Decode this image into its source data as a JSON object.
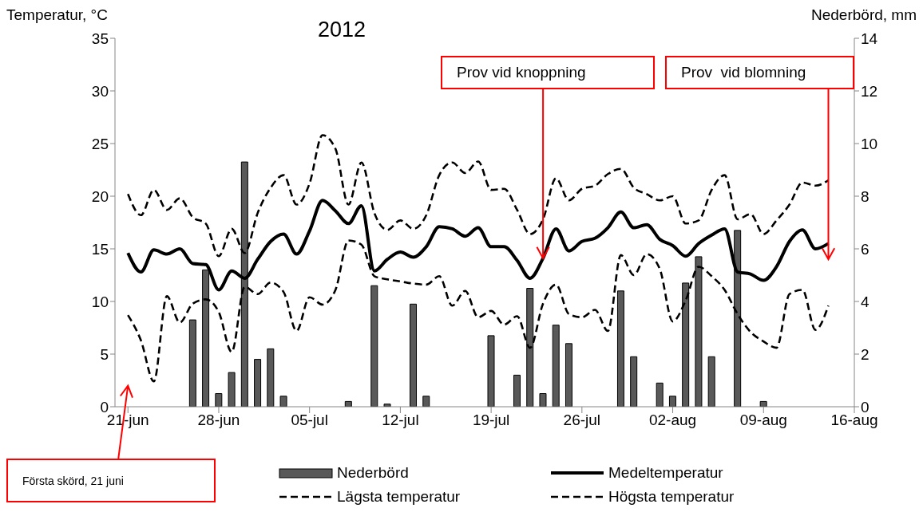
{
  "chart_data": {
    "type": "line",
    "title": "2012",
    "ylabel": "Temperatur, °C",
    "y2label": "Nederbörd, mm",
    "x": [
      "--06-21",
      "--06-22",
      "--06-23",
      "--06-24",
      "--06-25",
      "--06-26",
      "--06-27",
      "--06-28",
      "--06-29",
      "--06-30",
      "--07-01",
      "--07-02",
      "--07-03",
      "--07-04",
      "--07-05",
      "--07-06",
      "--07-07",
      "--07-08",
      "--07-09",
      "--07-10",
      "--07-11",
      "--07-12",
      "--07-13",
      "--07-14",
      "--07-15",
      "--07-16",
      "--07-17",
      "--07-18",
      "--07-19",
      "--07-20",
      "--07-21",
      "--07-22",
      "--07-23",
      "--07-24",
      "--07-25",
      "--07-26",
      "--07-27",
      "--07-28",
      "--07-29",
      "--07-30",
      "--07-31",
      "--08-01",
      "--08-02",
      "--08-03",
      "--08-04",
      "--08-05",
      "--08-06",
      "--08-07",
      "--08-08",
      "--08-09",
      "--08-10",
      "--08-11",
      "--08-12",
      "--08-13",
      "--08-14"
    ],
    "series": [
      {
        "name": "Nederbörd",
        "type": "bar",
        "axis": "y2",
        "color": "#595959",
        "values": [
          0,
          0,
          0,
          0,
          0,
          3.3,
          5.2,
          0.5,
          1.3,
          9.3,
          1.8,
          2.2,
          0.4,
          0,
          0,
          0,
          0,
          0.2,
          0,
          4.6,
          0.1,
          0,
          3.9,
          0.4,
          0,
          0,
          0,
          0,
          2.7,
          0,
          1.2,
          4.5,
          0.5,
          3.1,
          2.4,
          0,
          0,
          0,
          4.4,
          1.9,
          0,
          0.9,
          0.4,
          4.7,
          5.7,
          1.9,
          0,
          6.7,
          0,
          0.2,
          0,
          0,
          0,
          0,
          0
        ]
      },
      {
        "name": "Medeltemperatur",
        "line_style": "solid",
        "color": "#000000",
        "values": [
          14.6,
          12.8,
          14.9,
          14.5,
          15.0,
          13.6,
          13.5,
          11.1,
          12.9,
          12.2,
          14.0,
          15.7,
          16.4,
          14.5,
          16.7,
          19.6,
          18.6,
          17.4,
          19.1,
          12.9,
          14.0,
          14.7,
          14.2,
          15.2,
          17.1,
          16.9,
          16.2,
          17.0,
          15.2,
          15.2,
          13.9,
          12.2,
          14.1,
          16.9,
          14.8,
          15.7,
          16.0,
          17.0,
          18.5,
          17.0,
          17.3,
          15.9,
          15.3,
          14.3,
          15.5,
          16.3,
          16.9,
          12.8,
          12.6,
          12.0,
          13.3,
          15.7,
          16.8,
          15.0,
          15.5
        ]
      },
      {
        "name": "Lägsta temperatur",
        "line_style": "dashed",
        "color": "#000000",
        "values": [
          8.7,
          6.3,
          2.4,
          10.5,
          8.0,
          9.8,
          10.2,
          9.0,
          5.2,
          11.4,
          10.7,
          11.8,
          10.9,
          7.2,
          10.4,
          9.7,
          11.1,
          15.8,
          15.4,
          12.4,
          12.1,
          11.9,
          11.7,
          11.6,
          12.4,
          9.6,
          11.0,
          8.5,
          9.1,
          7.8,
          8.6,
          5.6,
          9.8,
          11.6,
          8.8,
          8.5,
          9.2,
          7.2,
          14.4,
          12.5,
          14.5,
          13.1,
          8.1,
          10.1,
          13.3,
          12.4,
          11.1,
          8.8,
          7.1,
          6.2,
          5.6,
          10.7,
          11.1,
          7.3,
          9.6
        ]
      },
      {
        "name": "Högsta temperatur",
        "line_style": "dashed",
        "color": "#000000",
        "values": [
          20.2,
          18.2,
          20.6,
          18.7,
          19.8,
          18.0,
          17.4,
          14.3,
          16.9,
          14.6,
          18.4,
          20.8,
          22.0,
          19.2,
          21.2,
          25.8,
          24.5,
          19.2,
          23.2,
          18.4,
          16.8,
          17.7,
          16.9,
          18.2,
          22.0,
          23.2,
          22.2,
          23.3,
          20.6,
          20.7,
          18.7,
          16.4,
          17.8,
          21.7,
          19.6,
          20.7,
          21.0,
          22.1,
          22.6,
          20.8,
          20.2,
          19.6,
          20.0,
          17.4,
          17.7,
          20.6,
          22.0,
          17.8,
          18.3,
          16.4,
          17.7,
          19.2,
          21.3,
          21.0,
          21.5
        ]
      }
    ],
    "xlim": [
      "--06-20",
      "--08-16"
    ],
    "xticks": [
      {
        "value": "--06-21",
        "label": "21-jun"
      },
      {
        "value": "--06-28",
        "label": "28-jun"
      },
      {
        "value": "--07-05",
        "label": "05-jul"
      },
      {
        "value": "--07-12",
        "label": "12-jul"
      },
      {
        "value": "--07-19",
        "label": "19-jul"
      },
      {
        "value": "--07-26",
        "label": "26-jul"
      },
      {
        "value": "--08-02",
        "label": "02-aug"
      },
      {
        "value": "--08-09",
        "label": "09-aug"
      },
      {
        "value": "--08-16",
        "label": "16-aug"
      }
    ],
    "ylim": [
      0,
      35
    ],
    "yticks": [
      0,
      5,
      10,
      15,
      20,
      25,
      30,
      35
    ],
    "y2lim": [
      0,
      14
    ],
    "y2ticks": [
      0,
      2,
      4,
      6,
      8,
      10,
      12,
      14
    ],
    "grid": false,
    "legend": "bottom",
    "marker": "none",
    "annotations": [
      {
        "text": "Prov vid knoppning",
        "x": "--07-23",
        "y": 14.1
      },
      "Prov  vid blomning",
      "Första skörd, 21 juni"
    ]
  }
}
